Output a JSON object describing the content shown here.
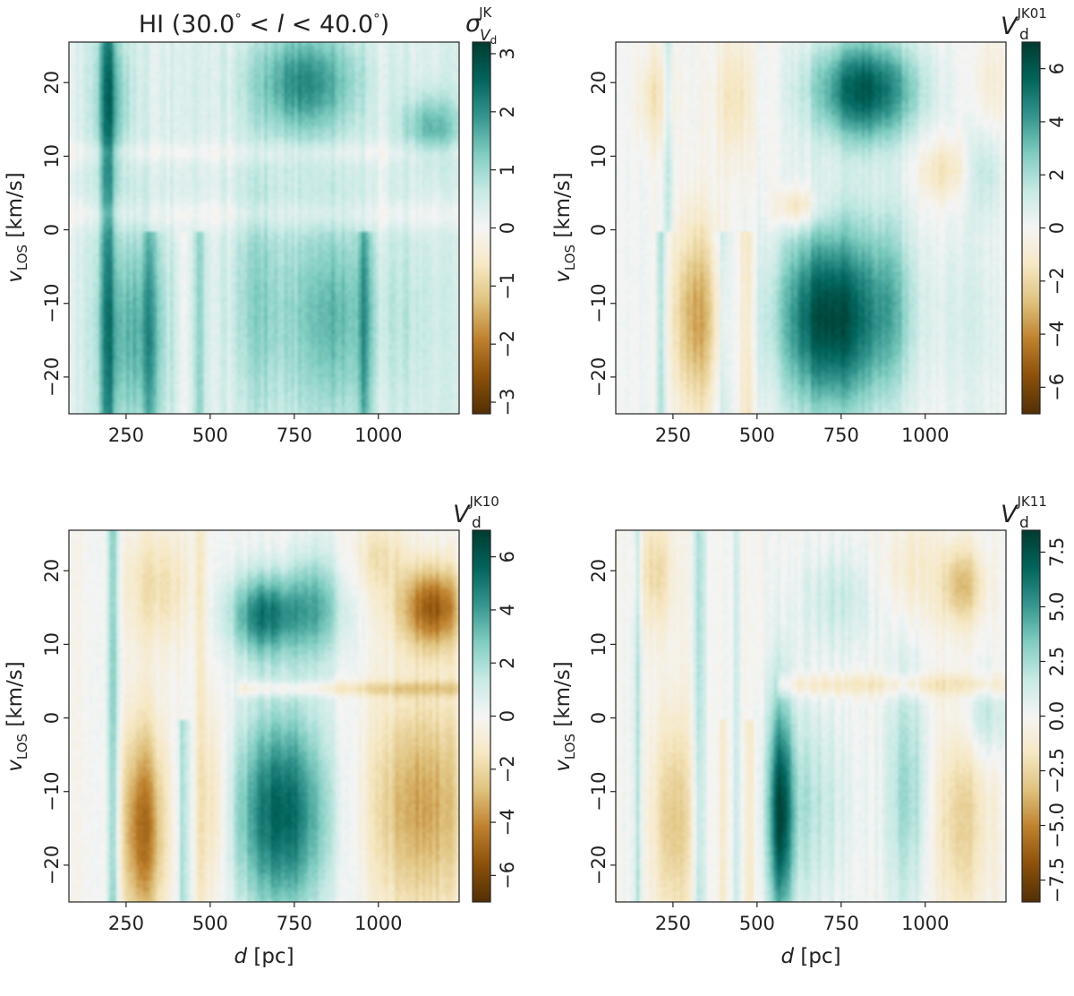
{
  "figure": {
    "colormap": "BrBG (brown-white-teal diverging)",
    "colormap_stops": [
      "#543005",
      "#8c510a",
      "#bf812d",
      "#dfc27d",
      "#f6e8c3",
      "#f5f5f5",
      "#c7eae5",
      "#80cdc1",
      "#35978f",
      "#01665e",
      "#003c30"
    ]
  },
  "chart_data": [
    {
      "type": "heatmap",
      "panel": "top-left",
      "title": "HI (30.0° < l < 40.0°)",
      "title_parts": {
        "prefix": "HI (30.0",
        "deg1": "°",
        "lt1": " < ",
        "var": "l",
        "lt2": " < ",
        "num2": "40.0",
        "deg2": "°",
        "suffix": ")"
      },
      "xlabel": "",
      "ylabel": {
        "main": "v",
        "sub": "LOS",
        "rest": " [km/s]"
      },
      "xlim": [
        80,
        1240
      ],
      "ylim": [
        -25,
        25.5
      ],
      "xticks": [
        250,
        500,
        750,
        1000
      ],
      "yticks": [
        -20,
        -10,
        0,
        10,
        20
      ],
      "xtick_labels": [
        "250",
        "500",
        "750",
        "1000"
      ],
      "ytick_labels": [
        "−20",
        "−10",
        "0",
        "10",
        "20"
      ],
      "colorbar": {
        "label": {
          "main": "σ",
          "sup": "JK",
          "sub": "V",
          "subsub": "d"
        },
        "range": [
          -3.2,
          3.2
        ],
        "ticks": [
          -3,
          -2,
          -1,
          0,
          1,
          2,
          3
        ],
        "tick_labels": [
          "−3",
          "−2",
          "−1",
          "0",
          "1",
          "2",
          "3"
        ]
      },
      "field": {
        "base": 0.35,
        "bands": [
          {
            "d0": 80,
            "d1": 1240,
            "v0": 9,
            "v1": 12,
            "amp": -0.3
          },
          {
            "d0": 80,
            "d1": 1240,
            "v0": 0,
            "v1": 4,
            "amp": -0.35
          }
        ],
        "blobs": [
          {
            "d": 270,
            "v": -14,
            "sd": 70,
            "sv": 10,
            "amp": 1.3
          },
          {
            "d": 860,
            "v": -12,
            "sd": 95,
            "sv": 10,
            "amp": 1.2
          },
          {
            "d": 640,
            "v": -10,
            "sd": 60,
            "sv": 12,
            "amp": 0.8
          },
          {
            "d": 780,
            "v": 20,
            "sd": 110,
            "sv": 5,
            "amp": 1.7
          },
          {
            "d": 1160,
            "v": 14,
            "sd": 60,
            "sv": 3,
            "amp": 1.2
          },
          {
            "d": 210,
            "v": 18,
            "sd": 40,
            "sv": 7,
            "amp": 1.0
          },
          {
            "d": 1100,
            "v": -12,
            "sd": 70,
            "sv": 10,
            "amp": 0.3
          }
        ],
        "stripes": [
          {
            "d": 195,
            "w": 16,
            "amp": 1.4,
            "v0": -25,
            "v1": 25.5
          },
          {
            "d": 325,
            "w": 14,
            "amp": 0.9,
            "v0": -25,
            "v1": 0
          },
          {
            "d": 420,
            "w": 10,
            "amp": -0.4,
            "v0": -25,
            "v1": 0
          },
          {
            "d": 470,
            "w": 10,
            "amp": 0.8,
            "v0": -25,
            "v1": 0
          },
          {
            "d": 560,
            "w": 10,
            "amp": -0.3,
            "v0": -25,
            "v1": 25.5
          },
          {
            "d": 960,
            "w": 14,
            "amp": 1.0,
            "v0": -25,
            "v1": 0
          },
          {
            "d": 1010,
            "w": 12,
            "amp": -0.25,
            "v0": -25,
            "v1": 25.5
          }
        ]
      }
    },
    {
      "type": "heatmap",
      "panel": "top-right",
      "title": "",
      "xlabel": "",
      "ylabel": {
        "main": "v",
        "sub": "LOS",
        "rest": " [km/s]"
      },
      "xlim": [
        80,
        1240
      ],
      "ylim": [
        -25,
        25.5
      ],
      "xticks": [
        250,
        500,
        750,
        1000
      ],
      "yticks": [
        -20,
        -10,
        0,
        10,
        20
      ],
      "xtick_labels": [
        "250",
        "500",
        "750",
        "1000"
      ],
      "ytick_labels": [
        "−20",
        "−10",
        "0",
        "10",
        "20"
      ],
      "colorbar": {
        "label": {
          "main": "V",
          "sup": "JK01",
          "sub": "d"
        },
        "range": [
          -7,
          7
        ],
        "ticks": [
          -6,
          -4,
          -2,
          0,
          2,
          4,
          6
        ],
        "tick_labels": [
          "−6",
          "−4",
          "−2",
          "0",
          "2",
          "4",
          "6"
        ]
      },
      "field": {
        "base": 0.0,
        "bands": [],
        "blobs": [
          {
            "d": 720,
            "v": -12,
            "sd": 110,
            "sv": 9,
            "amp": 6.8
          },
          {
            "d": 900,
            "v": -10,
            "sd": 50,
            "sv": 10,
            "amp": 2.0
          },
          {
            "d": 820,
            "v": 19,
            "sd": 110,
            "sv": 5,
            "amp": 6.0
          },
          {
            "d": 320,
            "v": -12,
            "sd": 50,
            "sv": 9,
            "amp": -3.5
          },
          {
            "d": 200,
            "v": 18,
            "sd": 40,
            "sv": 5,
            "amp": -1.6
          },
          {
            "d": 430,
            "v": 18,
            "sd": 40,
            "sv": 6,
            "amp": -1.5
          },
          {
            "d": 1060,
            "v": 8,
            "sd": 60,
            "sv": 3,
            "amp": -1.6
          },
          {
            "d": 620,
            "v": 3,
            "sd": 45,
            "sv": 2,
            "amp": -2.4
          },
          {
            "d": 1110,
            "v": -12,
            "sd": 90,
            "sv": 10,
            "amp": 0.8
          },
          {
            "d": 1170,
            "v": 8,
            "sd": 40,
            "sv": 4,
            "amp": 1.5
          },
          {
            "d": 1200,
            "v": 20,
            "sd": 50,
            "sv": 5,
            "amp": -0.9
          }
        ],
        "stripes": [
          {
            "d": 215,
            "w": 9,
            "amp": 2.2,
            "v0": -25,
            "v1": 0
          },
          {
            "d": 235,
            "w": 10,
            "amp": 1.6,
            "v0": 0,
            "v1": 25.5
          },
          {
            "d": 400,
            "w": 15,
            "amp": 1.4,
            "v0": -25,
            "v1": 0
          },
          {
            "d": 470,
            "w": 14,
            "amp": -1.5,
            "v0": -25,
            "v1": 0
          }
        ]
      }
    },
    {
      "type": "heatmap",
      "panel": "bottom-left",
      "title": "",
      "xlabel": {
        "main": "d",
        "rest": " [pc]"
      },
      "ylabel": {
        "main": "v",
        "sub": "LOS",
        "rest": " [km/s]"
      },
      "xlim": [
        80,
        1240
      ],
      "ylim": [
        -25,
        25.5
      ],
      "xticks": [
        250,
        500,
        750,
        1000
      ],
      "yticks": [
        -20,
        -10,
        0,
        10,
        20
      ],
      "xtick_labels": [
        "250",
        "500",
        "750",
        "1000"
      ],
      "ytick_labels": [
        "−20",
        "−10",
        "0",
        "10",
        "20"
      ],
      "colorbar": {
        "label": {
          "main": "V",
          "sup": "JK10",
          "sub": "d"
        },
        "range": [
          -7,
          7
        ],
        "ticks": [
          -6,
          -4,
          -2,
          0,
          2,
          4,
          6
        ],
        "tick_labels": [
          "−6",
          "−4",
          "−2",
          "0",
          "2",
          "4",
          "6"
        ]
      },
      "field": {
        "base": 0.0,
        "bands": [
          {
            "d0": 580,
            "d1": 1240,
            "v0": 3,
            "v1": 5,
            "amp": -1.6
          }
        ],
        "blobs": [
          {
            "d": 710,
            "v": -13,
            "sd": 95,
            "sv": 10,
            "amp": 5.8
          },
          {
            "d": 660,
            "v": 14,
            "sd": 70,
            "sv": 4,
            "amp": 5.0
          },
          {
            "d": 810,
            "v": 15,
            "sd": 60,
            "sv": 5,
            "amp": 3.2
          },
          {
            "d": 300,
            "v": -15,
            "sd": 45,
            "sv": 10,
            "amp": -4.8
          },
          {
            "d": 1130,
            "v": -12,
            "sd": 110,
            "sv": 11,
            "amp": -3.5
          },
          {
            "d": 1160,
            "v": 15,
            "sd": 70,
            "sv": 4,
            "amp": -5.2
          },
          {
            "d": 340,
            "v": 18,
            "sd": 70,
            "sv": 6,
            "amp": -1.8
          },
          {
            "d": 510,
            "v": -12,
            "sd": 30,
            "sv": 10,
            "amp": -2.0
          },
          {
            "d": 1000,
            "v": 22,
            "sd": 60,
            "sv": 4,
            "amp": -1.5
          }
        ],
        "stripes": [
          {
            "d": 210,
            "w": 13,
            "amp": 2.6,
            "v0": -25,
            "v1": 25.5
          },
          {
            "d": 420,
            "w": 12,
            "amp": 2.0,
            "v0": -25,
            "v1": 0
          },
          {
            "d": 470,
            "w": 10,
            "amp": -1.2,
            "v0": -25,
            "v1": 25.5
          }
        ]
      }
    },
    {
      "type": "heatmap",
      "panel": "bottom-right",
      "title": "",
      "xlabel": {
        "main": "d",
        "rest": " [pc]"
      },
      "ylabel": {
        "main": "v",
        "sub": "LOS",
        "rest": " [km/s]"
      },
      "xlim": [
        80,
        1240
      ],
      "ylim": [
        -25,
        25.5
      ],
      "xticks": [
        250,
        500,
        750,
        1000
      ],
      "yticks": [
        -20,
        -10,
        0,
        10,
        20
      ],
      "xtick_labels": [
        "250",
        "500",
        "750",
        "1000"
      ],
      "ytick_labels": [
        "−20",
        "−10",
        "0",
        "10",
        "20"
      ],
      "colorbar": {
        "label": {
          "main": "V",
          "sup": "JK11",
          "sub": "d"
        },
        "range": [
          -8.5,
          8.5
        ],
        "ticks": [
          -7.5,
          -5.0,
          -2.5,
          0.0,
          2.5,
          5.0,
          7.5
        ],
        "tick_labels": [
          "−7.5",
          "−5.0",
          "−2.5",
          "0.0",
          "2.5",
          "5.0",
          "7.5"
        ]
      },
      "field": {
        "base": 0.0,
        "bands": [
          {
            "d0": 560,
            "d1": 1240,
            "v0": 3,
            "v1": 6,
            "amp": -1.8
          }
        ],
        "blobs": [
          {
            "d": 570,
            "v": -13,
            "sd": 25,
            "sv": 11,
            "amp": 7.0
          },
          {
            "d": 650,
            "v": -12,
            "sd": 80,
            "sv": 10,
            "amp": 2.2
          },
          {
            "d": 950,
            "v": -10,
            "sd": 45,
            "sv": 12,
            "amp": 2.8
          },
          {
            "d": 250,
            "v": -14,
            "sd": 45,
            "sv": 11,
            "amp": -3.2
          },
          {
            "d": 1110,
            "v": -14,
            "sd": 60,
            "sv": 10,
            "amp": -2.8
          },
          {
            "d": 1110,
            "v": 18,
            "sd": 45,
            "sv": 4,
            "amp": -3.6
          },
          {
            "d": 200,
            "v": 20,
            "sd": 40,
            "sv": 6,
            "amp": -2.4
          },
          {
            "d": 740,
            "v": 16,
            "sd": 80,
            "sv": 5,
            "amp": 1.6
          },
          {
            "d": 950,
            "v": 20,
            "sd": 60,
            "sv": 5,
            "amp": -1.4
          },
          {
            "d": 1180,
            "v": 0,
            "sd": 50,
            "sv": 4,
            "amp": 2.0
          }
        ],
        "stripes": [
          {
            "d": 145,
            "w": 10,
            "amp": 2.0,
            "v0": -25,
            "v1": 25.5
          },
          {
            "d": 330,
            "w": 14,
            "amp": 2.2,
            "v0": -25,
            "v1": 25.5
          },
          {
            "d": 400,
            "w": 8,
            "amp": -1.6,
            "v0": -25,
            "v1": 0
          },
          {
            "d": 440,
            "w": 8,
            "amp": 1.6,
            "v0": -25,
            "v1": 25.5
          },
          {
            "d": 480,
            "w": 10,
            "amp": -1.4,
            "v0": -25,
            "v1": 0
          }
        ]
      }
    }
  ]
}
